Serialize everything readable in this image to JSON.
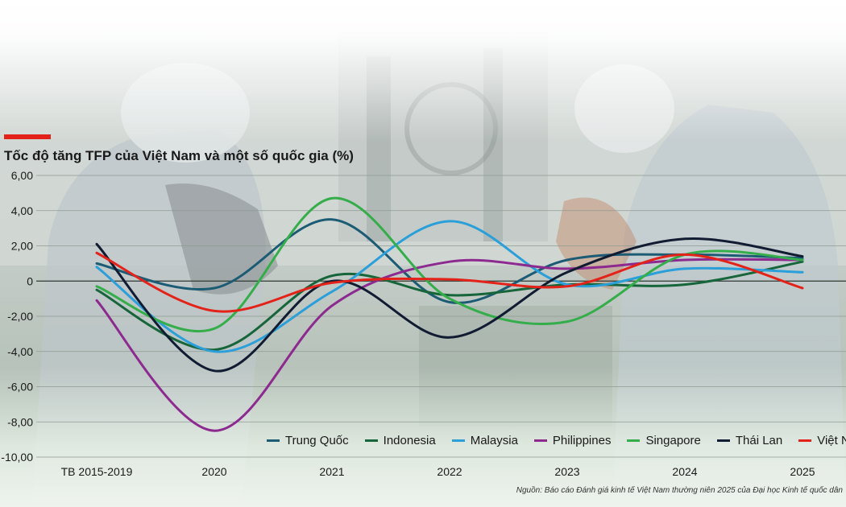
{
  "title": "Tốc độ tăng TFP của Việt Nam và một số quốc gia (%)",
  "source": "Nguồn: Báo cáo Đánh giá kinh tế Việt Nam thường niên 2025 của Đại học Kinh tế quốc dân",
  "colors": {
    "accent": "#e32219",
    "gridline": "#8f9a92",
    "text": "#1a1a1a"
  },
  "chart_data": {
    "type": "line",
    "title": "Tốc độ tăng TFP của Việt Nam và một số quốc gia (%)",
    "xlabel": "",
    "ylabel": "",
    "categories": [
      "TB 2015-2019",
      "2020",
      "2021",
      "2022",
      "2023",
      "2024",
      "2025"
    ],
    "y_ticks": [
      "6,00",
      "4,00",
      "2,00",
      "0",
      "-2,00",
      "-4,00",
      "-6,00",
      "-8,00",
      "-10,00"
    ],
    "ylim": [
      -10,
      6
    ],
    "grid": true,
    "legend_position": "bottom",
    "series": [
      {
        "name": "Trung Quốc",
        "color": "#1c5b74",
        "values": [
          1.0,
          -0.4,
          3.5,
          -1.2,
          1.2,
          1.5,
          1.3
        ]
      },
      {
        "name": "Indonesia",
        "color": "#17653a",
        "values": [
          -0.5,
          -3.9,
          0.3,
          -0.8,
          -0.2,
          -0.2,
          1.1
        ]
      },
      {
        "name": "Malaysia",
        "color": "#2b9fd9",
        "values": [
          0.8,
          -4.0,
          -0.6,
          3.4,
          -0.2,
          0.7,
          0.5
        ]
      },
      {
        "name": "Philippines",
        "color": "#8c2a8f",
        "values": [
          -1.1,
          -8.5,
          -1.4,
          1.1,
          0.7,
          1.2,
          1.2
        ]
      },
      {
        "name": "Singapore",
        "color": "#35ad4a",
        "values": [
          -0.3,
          -2.7,
          4.7,
          -1.0,
          -2.3,
          1.5,
          1.2
        ]
      },
      {
        "name": "Thái Lan",
        "color": "#111c33",
        "values": [
          2.1,
          -5.1,
          0.0,
          -3.2,
          0.5,
          2.4,
          1.4
        ]
      },
      {
        "name": "Việt Nam",
        "color": "#e32219",
        "values": [
          1.6,
          -1.7,
          -0.1,
          0.1,
          -0.3,
          1.5,
          -0.4
        ]
      }
    ]
  }
}
